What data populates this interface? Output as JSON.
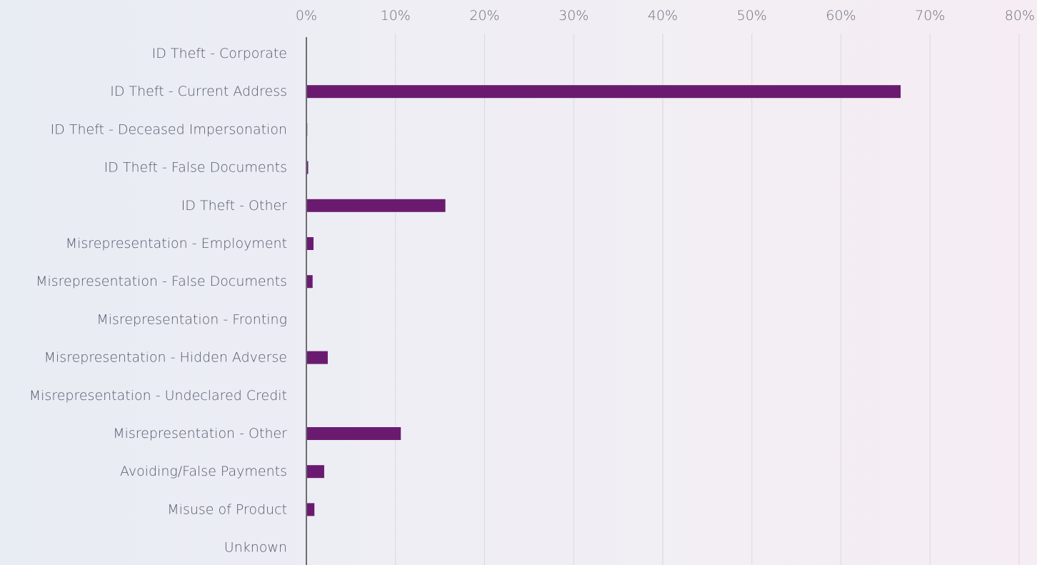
{
  "colors": {
    "bar": "#6a1b6f",
    "axis": "#6c6c72",
    "grid": "#d9d9df",
    "text": "#55576a"
  },
  "chart_data": {
    "type": "bar",
    "orientation": "horizontal",
    "title": "",
    "xlabel": "",
    "ylabel": "",
    "xlim": [
      0,
      80
    ],
    "x_ticks": [
      "0%",
      "10%",
      "20%",
      "30%",
      "40%",
      "50%",
      "60%",
      "70%",
      "80%"
    ],
    "x_axis_position": "top",
    "grid": true,
    "legend": "none",
    "categories": [
      "ID Theft - Corporate",
      "ID Theft - Current Address",
      "ID Theft - Deceased Impersonation",
      "ID Theft - False Documents",
      "ID Theft - Other",
      "Misrepresentation - Employment",
      "Misrepresentation - False Documents",
      "Misrepresentation - Fronting",
      "Misrepresentation - Hidden Adverse",
      "Misrepresentation - Undeclared Credit",
      "Misrepresentation - Other",
      "Avoiding/False Payments",
      "Misuse of Product",
      "Unknown"
    ],
    "values": [
      0,
      66.7,
      0.1,
      0.2,
      15.6,
      0.8,
      0.7,
      0,
      2.4,
      0,
      10.6,
      2.0,
      0.9,
      0
    ]
  }
}
